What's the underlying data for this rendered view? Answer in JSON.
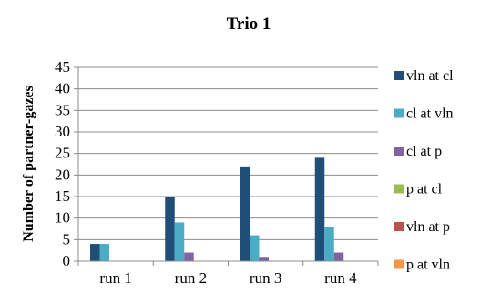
{
  "chart_data": {
    "type": "bar",
    "title": "Trio 1",
    "xlabel": "",
    "ylabel": "Number of partner-gazes",
    "ylim": [
      0,
      45
    ],
    "yticks": [
      0,
      5,
      10,
      15,
      20,
      25,
      30,
      35,
      40,
      45
    ],
    "grid": true,
    "legend_position": "right",
    "categories": [
      "run 1",
      "run 2",
      "run 3",
      "run 4"
    ],
    "series": [
      {
        "name": "vln at cl",
        "color": "#1f4e79",
        "values": [
          4,
          15,
          22,
          24
        ]
      },
      {
        "name": "cl at vln",
        "color": "#4bacc6",
        "values": [
          4,
          9,
          6,
          8
        ]
      },
      {
        "name": "cl at p",
        "color": "#8064a2",
        "values": [
          0,
          2,
          1,
          2
        ]
      },
      {
        "name": "p at cl",
        "color": "#9bbb59",
        "values": [
          0,
          0,
          0,
          0
        ]
      },
      {
        "name": "vln at p",
        "color": "#c0504d",
        "values": [
          0,
          0,
          0,
          0
        ]
      },
      {
        "name": "p at vln",
        "color": "#f79646",
        "values": [
          0,
          0,
          0,
          0
        ]
      }
    ]
  }
}
